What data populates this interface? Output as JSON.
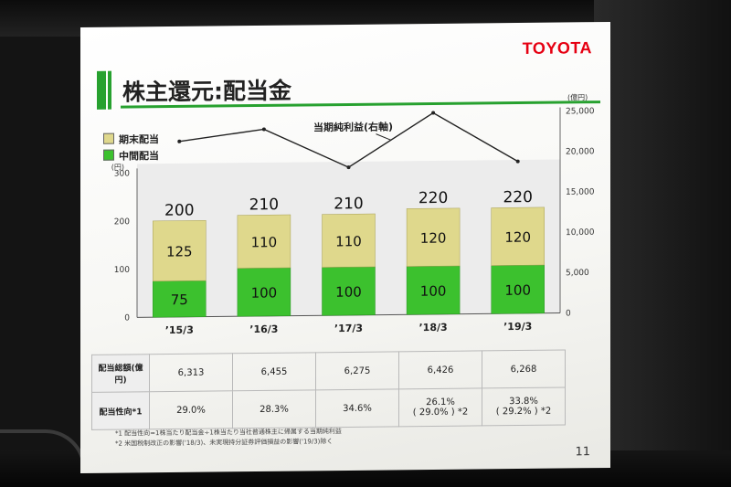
{
  "logo": "TOYOTA",
  "title": "株主還元:配当金",
  "legend": [
    {
      "label": "期末配当",
      "color": "#dfd88c"
    },
    {
      "label": "中間配当",
      "color": "#3cc12e"
    }
  ],
  "line_label": "当期純利益(右軸)",
  "y_left_unit": "(円)",
  "y_right_unit": "(億円)",
  "chart_data": {
    "type": "bar",
    "categories": [
      "’15/3",
      "’16/3",
      "’17/3",
      "’18/3",
      "’19/3"
    ],
    "series": [
      {
        "name": "中間配当",
        "values": [
          75,
          100,
          100,
          100,
          100
        ]
      },
      {
        "name": "期末配当",
        "values": [
          125,
          110,
          110,
          120,
          120
        ]
      }
    ],
    "totals": [
      "200",
      "210",
      "210",
      "220",
      "220"
    ],
    "left_ticks": [
      "0",
      "100",
      "200",
      "300"
    ],
    "ylim": [
      0,
      300
    ],
    "right_ticks": [
      "0",
      "5,000",
      "10,000",
      "15,000",
      "20,000",
      "25,000"
    ],
    "y2lim": [
      0,
      25000
    ],
    "line_values": [
      21730,
      23130,
      18310,
      24940,
      18820
    ]
  },
  "table": {
    "rows": [
      {
        "header": "配当総額(億円)",
        "values": [
          "6,313",
          "6,455",
          "6,275",
          "6,426",
          "6,268"
        ],
        "notes": [
          "",
          "",
          "",
          "",
          ""
        ]
      },
      {
        "header": "配当性向*1",
        "values": [
          "29.0%",
          "28.3%",
          "34.6%",
          "26.1%",
          "33.8%"
        ],
        "notes": [
          "",
          "",
          "",
          "( 29.0% ) *2",
          "( 29.2% ) *2"
        ]
      }
    ]
  },
  "footnotes": [
    "*1 配当性向=1株当たり配当金÷1株当たり当社普通株主に帰属する当期純利益",
    "*2 米国税制改正の影響('18/3)、未実現持分証券評価損益の影響('19/3)除く"
  ],
  "page_number": "11"
}
